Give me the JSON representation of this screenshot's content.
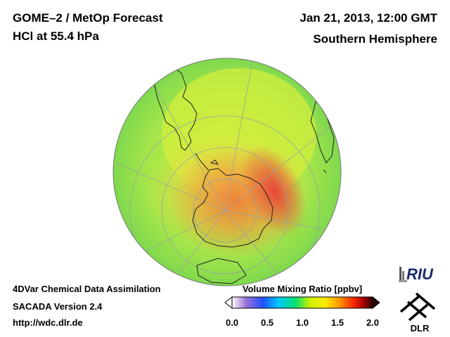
{
  "header": {
    "title_line1": "GOME–2 / MetOp Forecast",
    "title_line2": "HCl at 55.4 hPa",
    "date": "Jan 21, 2013, 12:00 GMT",
    "region": "Southern Hemisphere"
  },
  "footer": {
    "line1": "4DVar Chemical Data Assimilation",
    "line2": "SACADA Version 2.4",
    "url": "http://wdc.dlr.de"
  },
  "colorbar": {
    "label": "Volume Mixing Ratio [ppbv]",
    "ticks": [
      "0.0",
      "0.5",
      "1.0",
      "1.5",
      "2.0"
    ],
    "range": [
      0.0,
      2.0
    ],
    "colors": [
      "#ffffff",
      "#9b6fd6",
      "#1f4fff",
      "#00c8ff",
      "#00e070",
      "#c8f000",
      "#ffee00",
      "#ff9a00",
      "#ff2a00",
      "#a00000",
      "#2a0000"
    ]
  },
  "logos": {
    "riu": "RIU",
    "dlr": "DLR"
  },
  "map": {
    "projection": "orthographic",
    "center": "South Pole",
    "field_colors": {
      "background": "#8fe04a",
      "ring": "#c9ef3c",
      "mid": "#f5d84a",
      "high": "#f0783a",
      "max": "#e8503a"
    }
  }
}
